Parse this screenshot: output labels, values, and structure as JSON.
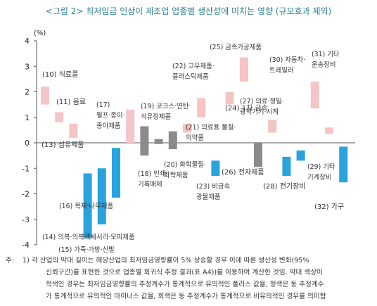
{
  "title": "<그림 2> 최저임금 인상이 제조업 업종별 생산성에 미치는 영향 (규모효과 제외)",
  "notes": {
    "prefix": "주:",
    "lines": [
      "1) 각 산업의 막대 길이는 해당산업의 최저임금영향률이 5% 상승할 경우 이에 따른 생산성 변화(95%",
      "신뢰구간)를 표현한 것으로 업종별 회귀식 추정 결과(표 A4))를 이용하여 계산한 것임. 막대 색상이",
      "적색인 경우는 최저임금영향률의 추정계수가 통계적으로 유의적인 플러스 값을, 청색은 동 추정계수",
      "가 통계적으로 유의적인 마이너스 값을, 회색은 동 추정계수가 통계적으로 비유의적인 경우를 의미함"
    ]
  },
  "colors": {
    "positive": "#f4c4c7",
    "negative": "#29a3de",
    "insignificant": "#8b8b8b",
    "axis": "#555555",
    "label": "#333333"
  },
  "chart_data": {
    "type": "bar",
    "subtype": "floating-range",
    "ylabel": "(%)",
    "ylim": [
      -4,
      4
    ],
    "yticks": [
      -4,
      -3,
      -2,
      -1,
      0,
      1,
      2,
      3,
      4
    ],
    "legend": "none",
    "grid": false,
    "series": [
      {
        "label": "(10) 식료품",
        "low": 1.5,
        "high": 2.2,
        "sig": "positive"
      },
      {
        "label": "(11) 음료",
        "low": 0.8,
        "high": 1.2,
        "sig": "positive"
      },
      {
        "label": "(13) 섬유제품",
        "low": 0.2,
        "high": 0.75,
        "sig": "positive"
      },
      {
        "label": "(14) 의복·의복액세서리·모피제품",
        "low": -3.75,
        "high": -1.2,
        "sig": "negative"
      },
      {
        "label": "(15) 가죽·가방·신발",
        "low": -3.2,
        "high": -1.0,
        "sig": "negative"
      },
      {
        "label": "(16) 목재·나무제품",
        "low": -2.15,
        "high": -0.2,
        "sig": "negative"
      },
      {
        "label": "(17) 펄프·종이·종이제품",
        "low": 0.0,
        "high": 1.3,
        "sig": "positive"
      },
      {
        "label": "(18) 인쇄·기록매체",
        "low": -0.5,
        "high": 0.65,
        "sig": "insignificant"
      },
      {
        "label": "(19) 코크스·연탄·석유정제품",
        "low": -0.05,
        "high": 0.15,
        "sig": "insignificant"
      },
      {
        "label": "(20) 화학물질·화학제품",
        "low": -0.25,
        "high": 0.45,
        "sig": "insignificant"
      },
      {
        "label": "(21) 의료용 물질·의약품",
        "low": 0.4,
        "high": 0.75,
        "sig": "positive"
      },
      {
        "label": "(22) 고무제품·플라스틱제품",
        "low": 1.0,
        "high": 1.75,
        "sig": "positive"
      },
      {
        "label": "(23) 비금속 광물제품",
        "low": -1.3,
        "high": -0.7,
        "sig": "negative"
      },
      {
        "label": "(24) 1차 금속",
        "low": 1.5,
        "high": 2.0,
        "sig": "positive"
      },
      {
        "label": "(25) 금속가공제품",
        "low": 2.4,
        "high": 3.35,
        "sig": "positive"
      },
      {
        "label": "(26) 전자제품",
        "low": -0.95,
        "high": 0.0,
        "sig": "insignificant"
      },
      {
        "label": "(27) 의료·정밀·광학기기·시계",
        "low": 0.4,
        "high": 0.9,
        "sig": "positive"
      },
      {
        "label": "(28) 전기장비",
        "low": -1.3,
        "high": -0.55,
        "sig": "negative"
      },
      {
        "label": "(29) 기타 기계장비",
        "low": -0.7,
        "high": -0.3,
        "sig": "negative"
      },
      {
        "label": "(30) 자동차·트레일러",
        "low": 1.35,
        "high": 2.4,
        "sig": "positive"
      },
      {
        "label": "(31) 기타 운송장비",
        "low": 0.35,
        "high": 0.6,
        "sig": "positive"
      },
      {
        "label": "(32) 가구",
        "low": -1.55,
        "high": -0.15,
        "sig": "negative"
      }
    ],
    "labels_text": [
      [
        "(10) 식료품"
      ],
      [
        "(11) 음료"
      ],
      [
        "(13) 섬유제품"
      ],
      [
        "(14) 의복·의복액세서리·모피제품"
      ],
      [
        "(15) 가죽·가방·신발"
      ],
      [
        "(16) 목재·나무제품"
      ],
      [
        "(17)",
        "펄프·종이·",
        "종이제품"
      ],
      [
        "(18) 인쇄·",
        "기록매체"
      ],
      [
        "(19) 코크스·연탄·",
        "석유정제품"
      ],
      [
        "(20) 화학물질·",
        "화학제품"
      ],
      [
        "(21) 의료용 물질·",
        "의약품"
      ],
      [
        "(22) 고무제품·",
        "플라스틱제품"
      ],
      [
        "(23) 비금속",
        "광물제품"
      ],
      [
        "(24) 1차 금속"
      ],
      [
        "(25) 금속가공제품"
      ],
      [
        "(26) 전자제품"
      ],
      [
        "(27) 의료·정밀·",
        "광학기기·시계"
      ],
      [
        "(28) 전기장비"
      ],
      [
        "(29) 기타",
        "기계장비"
      ],
      [
        "(30) 자동차·",
        "트레일러"
      ],
      [
        "(31) 기타",
        "운송장비"
      ],
      [
        "(32) 가구"
      ]
    ]
  }
}
